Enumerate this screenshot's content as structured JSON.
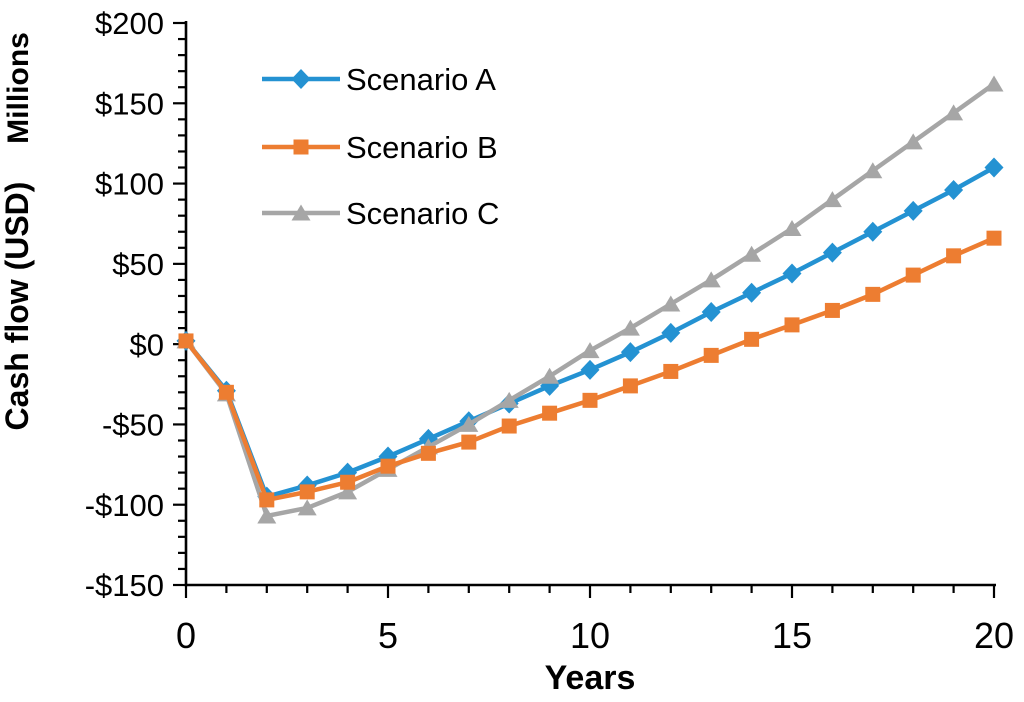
{
  "chart_data": {
    "type": "line",
    "title": "",
    "xlabel": "Years",
    "ylabel": "Cash flow (USD)",
    "ylabel_units": "Millions",
    "xlim": [
      0,
      20
    ],
    "ylim": [
      -150,
      200
    ],
    "grid": false,
    "legend_position": "top-left-inside",
    "x": [
      0,
      1,
      2,
      3,
      4,
      5,
      6,
      7,
      8,
      9,
      10,
      11,
      12,
      13,
      14,
      15,
      16,
      17,
      18,
      19,
      20
    ],
    "series": [
      {
        "name": "Scenario A",
        "color": "#2492D2",
        "marker": "diamond",
        "values": [
          2,
          -29,
          -95,
          -88,
          -80,
          -70,
          -59,
          -48,
          -37,
          -26,
          -16,
          -5,
          7,
          20,
          32,
          44,
          57,
          70,
          83,
          96,
          110
        ]
      },
      {
        "name": "Scenario B",
        "color": "#ED7D31",
        "marker": "square",
        "values": [
          2,
          -30,
          -97,
          -92,
          -86,
          -76,
          -68,
          -61,
          -51,
          -43,
          -35,
          -26,
          -17,
          -7,
          3,
          12,
          21,
          31,
          43,
          55,
          66
        ]
      },
      {
        "name": "Scenario C",
        "color": "#A6A6A6",
        "marker": "triangle",
        "values": [
          2,
          -31,
          -107,
          -102,
          -92,
          -78,
          -64,
          -50,
          -35,
          -20,
          -4,
          10,
          25,
          40,
          56,
          72,
          90,
          108,
          126,
          144,
          162
        ]
      }
    ],
    "draw_order": [
      "Scenario A",
      "Scenario C",
      "Scenario B"
    ],
    "y_ticks": [
      {
        "value": 200,
        "label": "$200"
      },
      {
        "value": 150,
        "label": "$150"
      },
      {
        "value": 100,
        "label": "$100"
      },
      {
        "value": 50,
        "label": "$50"
      },
      {
        "value": 0,
        "label": "$0"
      },
      {
        "value": -50,
        "label": "-$50"
      },
      {
        "value": -100,
        "label": "-$100"
      },
      {
        "value": -150,
        "label": "-$150"
      }
    ],
    "y_minor_step": 10,
    "x_ticks": [
      {
        "value": 0,
        "label": "0"
      },
      {
        "value": 5,
        "label": "5"
      },
      {
        "value": 10,
        "label": "10"
      },
      {
        "value": 15,
        "label": "15"
      },
      {
        "value": 20,
        "label": "20"
      }
    ],
    "x_minor_step": 1,
    "axis_color": "#000000"
  }
}
